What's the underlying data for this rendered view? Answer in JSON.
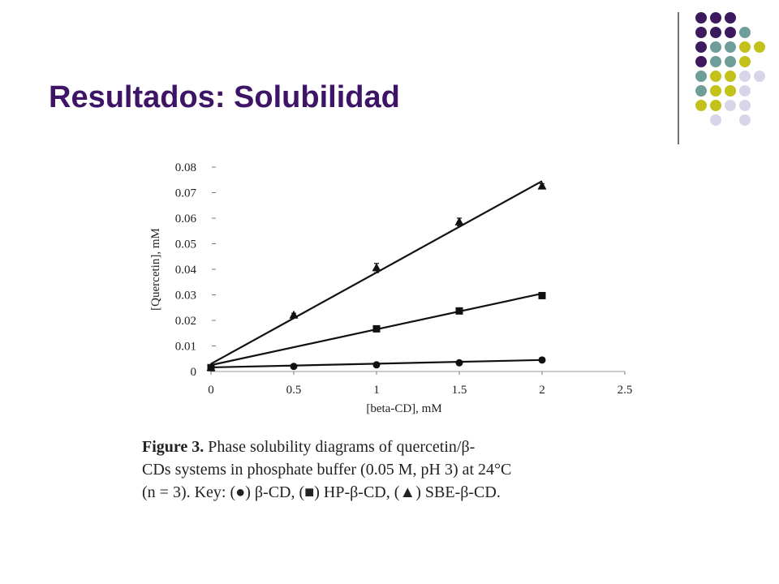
{
  "title": "Resultados: Solubilidad",
  "chart_data": {
    "type": "scatter",
    "y_label": "[Quercetin], mM",
    "x_label": "[beta-CD], mM",
    "xlim": [
      0,
      2.5
    ],
    "xticks": [
      0,
      0.5,
      1,
      1.5,
      2,
      2.5
    ],
    "ylim": [
      0,
      0.08
    ],
    "yticks": [
      0,
      0.01,
      0.02,
      0.03,
      0.04,
      0.05,
      0.06,
      0.07,
      0.08
    ],
    "series": [
      {
        "marker": "circle",
        "color": "#111111",
        "x": [
          0,
          0.5,
          1,
          1.5,
          2
        ],
        "values": [
          0.0015,
          0.002,
          0.0026,
          0.0034,
          0.0045
        ],
        "fit": {
          "x": [
            0,
            2
          ],
          "values": [
            0.0016,
            0.0045
          ]
        }
      },
      {
        "marker": "square",
        "color": "#111111",
        "x": [
          0,
          1,
          1.5,
          2
        ],
        "values": [
          0.0015,
          0.0167,
          0.0237,
          0.0297
        ],
        "fit": {
          "x": [
            0,
            2
          ],
          "values": [
            0.0025,
            0.0305
          ]
        }
      },
      {
        "marker": "triangle",
        "color": "#111111",
        "x": [
          0,
          0.5,
          1,
          1.5,
          2
        ],
        "values": [
          0.0015,
          0.022,
          0.0405,
          0.0585,
          0.0725
        ],
        "errors": [
          0,
          0.0008,
          0.0018,
          0.0015,
          0.001
        ],
        "fit": {
          "x": [
            0,
            2
          ],
          "values": [
            0.003,
            0.0745
          ]
        }
      }
    ]
  },
  "caption": {
    "label": "Figure 3.",
    "lines": [
      " Phase solubility diagrams of quercetin/β-",
      "CDs systems in phosphate buffer (0.05 M, pH 3) at 24°C",
      "(n = 3). Key: (●) β-CD, (■) HP-β-CD, (▲) SBE-β-CD."
    ]
  }
}
